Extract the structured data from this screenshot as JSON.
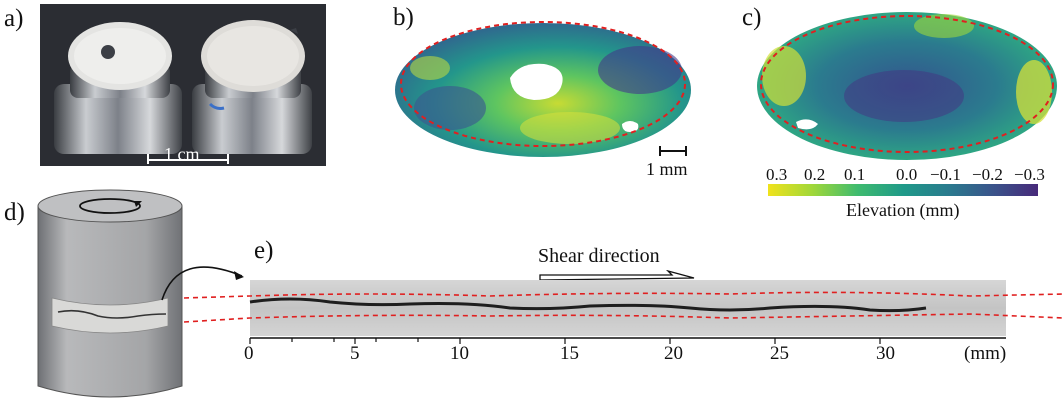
{
  "panels": {
    "a": {
      "label": "a)",
      "scale_bar": "1 cm"
    },
    "b": {
      "label": "b)",
      "scale_bar": "1 mm"
    },
    "c": {
      "label": "c)"
    },
    "d": {
      "label": "d)"
    },
    "e": {
      "label": "e)",
      "shear_label": "Shear direction"
    }
  },
  "colorbar": {
    "ticks": [
      "0.3",
      "0.2",
      "0.1",
      "0.0",
      "−0.1",
      "−0.2",
      "−0.3"
    ],
    "label": "Elevation (mm)",
    "colors": [
      "#f0e21c",
      "#9fd73a",
      "#3ebb6f",
      "#1f9a89",
      "#2a7b8e",
      "#3a548b",
      "#472a7a"
    ]
  },
  "axis_e": {
    "ticks": [
      "0",
      "5",
      "10",
      "15",
      "20",
      "25",
      "30"
    ],
    "unit": "(mm)"
  },
  "colors": {
    "dashed_outline": "#e02020",
    "cylinder": "#a9aaac"
  }
}
